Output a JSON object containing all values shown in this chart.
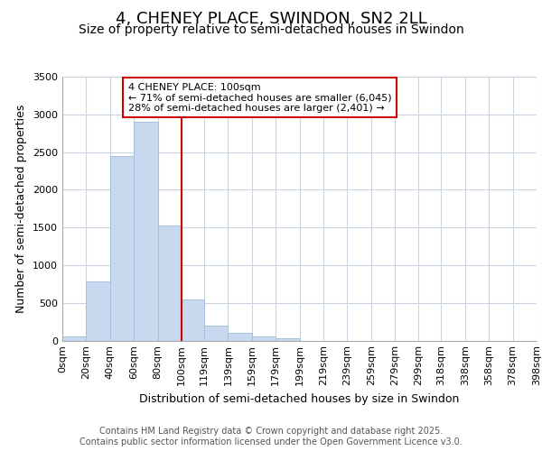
{
  "title": "4, CHENEY PLACE, SWINDON, SN2 2LL",
  "subtitle": "Size of property relative to semi-detached houses in Swindon",
  "xlabel": "Distribution of semi-detached houses by size in Swindon",
  "ylabel": "Number of semi-detached properties",
  "bins": [
    "0sqm",
    "20sqm",
    "40sqm",
    "60sqm",
    "80sqm",
    "100sqm",
    "119sqm",
    "139sqm",
    "159sqm",
    "179sqm",
    "199sqm",
    "219sqm",
    "239sqm",
    "259sqm",
    "279sqm",
    "299sqm",
    "318sqm",
    "338sqm",
    "358sqm",
    "378sqm",
    "398sqm"
  ],
  "bin_edges": [
    0,
    20,
    40,
    60,
    80,
    100,
    119,
    139,
    159,
    179,
    199,
    219,
    239,
    259,
    279,
    299,
    318,
    338,
    358,
    378,
    398
  ],
  "values": [
    50,
    780,
    2450,
    2900,
    1520,
    550,
    200,
    100,
    50,
    30,
    0,
    0,
    0,
    0,
    0,
    0,
    0,
    0,
    0,
    0
  ],
  "bar_color": "#c8d8ee",
  "bar_edge_color": "#a8c0dc",
  "vline_x": 100,
  "vline_color": "#cc0000",
  "annotation_text": "4 CHENEY PLACE: 100sqm\n← 71% of semi-detached houses are smaller (6,045)\n28% of semi-detached houses are larger (2,401) →",
  "annotation_box_color": "#ffffff",
  "annotation_box_edge": "#cc0000",
  "ylim": [
    0,
    3500
  ],
  "yticks": [
    0,
    500,
    1000,
    1500,
    2000,
    2500,
    3000,
    3500
  ],
  "background_color": "#ffffff",
  "plot_bg_color": "#ffffff",
  "grid_color": "#c8d4e0",
  "footer_text": "Contains HM Land Registry data © Crown copyright and database right 2025.\nContains public sector information licensed under the Open Government Licence v3.0.",
  "title_fontsize": 13,
  "subtitle_fontsize": 10,
  "axis_label_fontsize": 9,
  "tick_fontsize": 8,
  "annotation_fontsize": 8,
  "footer_fontsize": 7
}
